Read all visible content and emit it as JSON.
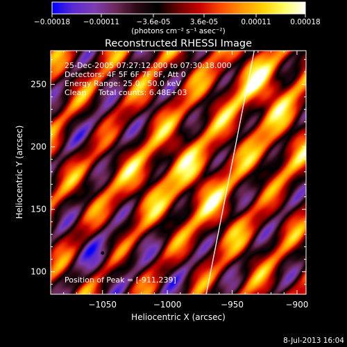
{
  "colorbar": {
    "tick_labels": [
      "-0.00018",
      "-0.00011",
      "-3.6e-05",
      "3.6e-05",
      "0.00011",
      "0.00018"
    ],
    "tick_values": [
      -0.00018,
      -0.00011,
      -3.6e-05,
      3.6e-05,
      0.00011,
      0.00018
    ],
    "range": [
      -0.00018,
      0.00018
    ],
    "unit_label": "(photons cm⁻² s⁻¹ asec⁻²)",
    "colors": [
      "#0000ff",
      "#5a2ad2",
      "#7c3cb4",
      "#6e2a5a",
      "#2a0a14",
      "#000000",
      "#6e0000",
      "#c80000",
      "#ff4b00",
      "#ff9600",
      "#ffd200",
      "#ffff64",
      "#ffffff"
    ]
  },
  "chart_data": {
    "type": "heatmap",
    "title": "Reconstructed RHESSI Image",
    "xlabel": "Heliocentric X (arcsec)",
    "ylabel": "Heliocentric Y (arcsec)",
    "xlim": [
      -1090,
      -893
    ],
    "ylim": [
      82,
      277
    ],
    "x_ticks": [
      -1050,
      -1000,
      -950,
      -900
    ],
    "x_tick_labels": [
      "−1050",
      "−1000",
      "−950",
      "−900"
    ],
    "y_ticks": [
      100,
      150,
      200,
      250
    ],
    "y_tick_labels": [
      "100",
      "150",
      "200",
      "250"
    ],
    "annotations": [
      "25-Dec-2005 07:27:12.000 to 07:30:18.000",
      "Detectors: 4F 5F 6F 7F 8F, Att 0",
      "Energy Range: 25.0 - 50.0 keV",
      "Clean     Total counts: 6.48E+03"
    ],
    "peak_label": "Position of Peak = [-911,239]",
    "peak": [
      -911,
      239
    ],
    "limb_line": [
      [
        -970,
        82
      ],
      [
        -933,
        277
      ]
    ],
    "peak_marker": [
      -1050,
      115
    ]
  },
  "footer": {
    "timestamp": "8-Jul-2013 16:04"
  }
}
